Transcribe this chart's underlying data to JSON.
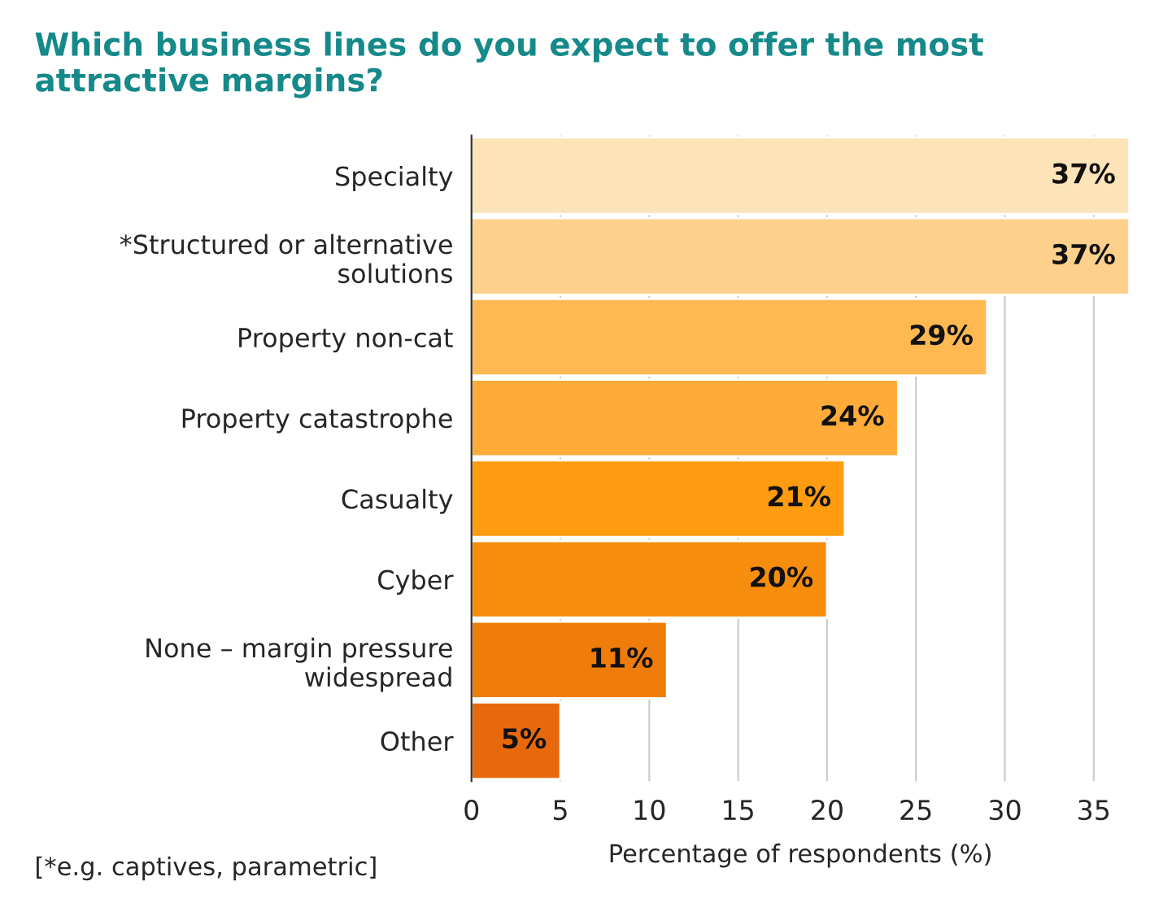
{
  "chart_data": {
    "type": "bar",
    "orientation": "horizontal",
    "title": "Which business lines do you expect to offer the most attractive margins?",
    "xlabel": "Percentage of respondents (%)",
    "categories": [
      "Specialty",
      "*Structured or alternative solutions",
      "Property non-cat",
      "Property catastrophe",
      "Casualty",
      "Cyber",
      "None – margin pressure widespread",
      "Other"
    ],
    "values": [
      37,
      37,
      29,
      24,
      21,
      20,
      11,
      5
    ],
    "colors": [
      "#fde3b8",
      "#fdd08c",
      "#ffb950",
      "#ffab38",
      "#ff9c10",
      "#f78d0c",
      "#f07d0a",
      "#e8690c"
    ],
    "value_labels": [
      "37%",
      "37%",
      "29%",
      "24%",
      "21%",
      "20%",
      "11%",
      "5%"
    ],
    "xlim": [
      0,
      37
    ],
    "xticks": [
      0,
      5,
      10,
      15,
      20,
      25,
      30,
      35
    ],
    "grid": "x",
    "annotations": [
      "[*e.g. captives, parametric]"
    ]
  }
}
